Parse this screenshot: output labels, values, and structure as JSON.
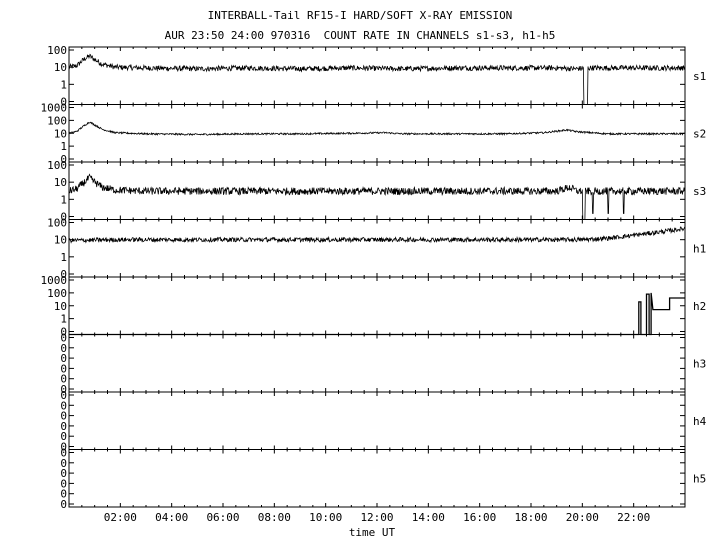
{
  "chart_data": {
    "type": "line",
    "title": "INTERBALL-Tail RF15-I HARD/SOFT X-RAY EMISSION",
    "subtitle": "AUR 23:50 24:00 970316  COUNT RATE IN CHANNELS s1-s3, h1-h5",
    "xlabel": "time UT",
    "x_ticks": [
      "02:00",
      "04:00",
      "06:00",
      "08:00",
      "10:00",
      "12:00",
      "14:00",
      "16:00",
      "18:00",
      "20:00",
      "22:00"
    ],
    "x_range_hours": [
      0,
      24
    ],
    "y_scale": "log",
    "panels": [
      {
        "name": "s1",
        "y_ticks": [
          "100",
          "10",
          "1",
          "0"
        ],
        "trace": [
          [
            0.0,
            10
          ],
          [
            0.3,
            12
          ],
          [
            0.6,
            30
          ],
          [
            0.8,
            45
          ],
          [
            1.0,
            28
          ],
          [
            1.3,
            15
          ],
          [
            1.8,
            10
          ],
          [
            3,
            9
          ],
          [
            5,
            8
          ],
          [
            7,
            9
          ],
          [
            9,
            8
          ],
          [
            11,
            9
          ],
          [
            13,
            8
          ],
          [
            15,
            9
          ],
          [
            17,
            9
          ],
          [
            19,
            9
          ],
          [
            19.7,
            8
          ],
          [
            20.2,
            9
          ],
          [
            21,
            9
          ],
          [
            23,
            9
          ],
          [
            24,
            9
          ]
        ],
        "noise": 0.35,
        "dropouts": [
          [
            20.05,
            20.2
          ]
        ],
        "glitches": []
      },
      {
        "name": "s2",
        "y_ticks": [
          "1000",
          "100",
          "10",
          "1",
          "0"
        ],
        "trace": [
          [
            0.0,
            10
          ],
          [
            0.3,
            14
          ],
          [
            0.6,
            40
          ],
          [
            0.8,
            75
          ],
          [
            1.0,
            45
          ],
          [
            1.3,
            20
          ],
          [
            1.8,
            11
          ],
          [
            3,
            9
          ],
          [
            5,
            8
          ],
          [
            7,
            9
          ],
          [
            9,
            9
          ],
          [
            11,
            10
          ],
          [
            12.3,
            11
          ],
          [
            13,
            9
          ],
          [
            15,
            9
          ],
          [
            17,
            9
          ],
          [
            18.5,
            11
          ],
          [
            19.4,
            18
          ],
          [
            19.8,
            13
          ],
          [
            21,
            9
          ],
          [
            23,
            9
          ],
          [
            24,
            9
          ]
        ],
        "noise": 0.15,
        "dropouts": [],
        "glitches": []
      },
      {
        "name": "s3",
        "y_ticks": [
          "100",
          "10",
          "1",
          "0"
        ],
        "trace": [
          [
            0.0,
            3
          ],
          [
            0.3,
            4
          ],
          [
            0.6,
            10
          ],
          [
            0.8,
            18
          ],
          [
            1.0,
            10
          ],
          [
            1.3,
            5
          ],
          [
            1.8,
            3.5
          ],
          [
            3,
            3
          ],
          [
            5,
            3
          ],
          [
            7,
            3
          ],
          [
            9,
            3
          ],
          [
            11,
            3
          ],
          [
            13,
            3
          ],
          [
            15,
            3
          ],
          [
            17,
            3
          ],
          [
            19,
            3
          ],
          [
            19.5,
            5
          ],
          [
            19.8,
            3
          ],
          [
            21,
            3
          ],
          [
            23,
            3
          ],
          [
            24,
            3
          ]
        ],
        "noise": 0.5,
        "dropouts": [
          [
            20.0,
            20.1
          ]
        ],
        "glitches": [
          20.4,
          21.0,
          21.6
        ]
      },
      {
        "name": "h1",
        "y_ticks": [
          "100",
          "10",
          "1",
          "0"
        ],
        "trace": [
          [
            0.0,
            9
          ],
          [
            2,
            10
          ],
          [
            4,
            10
          ],
          [
            6,
            10
          ],
          [
            8,
            10
          ],
          [
            10,
            10
          ],
          [
            12,
            10
          ],
          [
            14,
            10
          ],
          [
            16,
            10
          ],
          [
            18,
            10
          ],
          [
            20,
            10
          ],
          [
            21,
            12
          ],
          [
            22,
            18
          ],
          [
            23,
            28
          ],
          [
            23.5,
            35
          ],
          [
            24,
            45
          ]
        ],
        "noise": 0.3,
        "dropouts": [],
        "glitches": []
      },
      {
        "name": "h2",
        "y_ticks": [
          "1000",
          "100",
          "10",
          "1",
          "0"
        ],
        "steps": [
          [
            0,
            0
          ],
          [
            22.2,
            0
          ],
          [
            22.2,
            20
          ],
          [
            22.28,
            20
          ],
          [
            22.28,
            0
          ],
          [
            22.5,
            0
          ],
          [
            22.5,
            80
          ],
          [
            22.6,
            80
          ],
          [
            22.6,
            0
          ],
          [
            22.68,
            0
          ],
          [
            22.68,
            100
          ],
          [
            22.75,
            5
          ],
          [
            23.4,
            5
          ],
          [
            23.4,
            40
          ],
          [
            24,
            40
          ]
        ],
        "noise": 0,
        "dropouts": [],
        "glitches": []
      },
      {
        "name": "h3",
        "y_ticks": [
          "0",
          "0",
          "0",
          "0",
          "0",
          "0"
        ],
        "trace": [],
        "noise": 0,
        "dropouts": [],
        "glitches": []
      },
      {
        "name": "h4",
        "y_ticks": [
          "0",
          "0",
          "0",
          "0",
          "0",
          "0"
        ],
        "trace": [],
        "noise": 0,
        "dropouts": [],
        "glitches": []
      },
      {
        "name": "h5",
        "y_ticks": [
          "0",
          "0",
          "0",
          "0",
          "0",
          "0"
        ],
        "trace": [],
        "noise": 0,
        "dropouts": [],
        "glitches": []
      }
    ]
  }
}
